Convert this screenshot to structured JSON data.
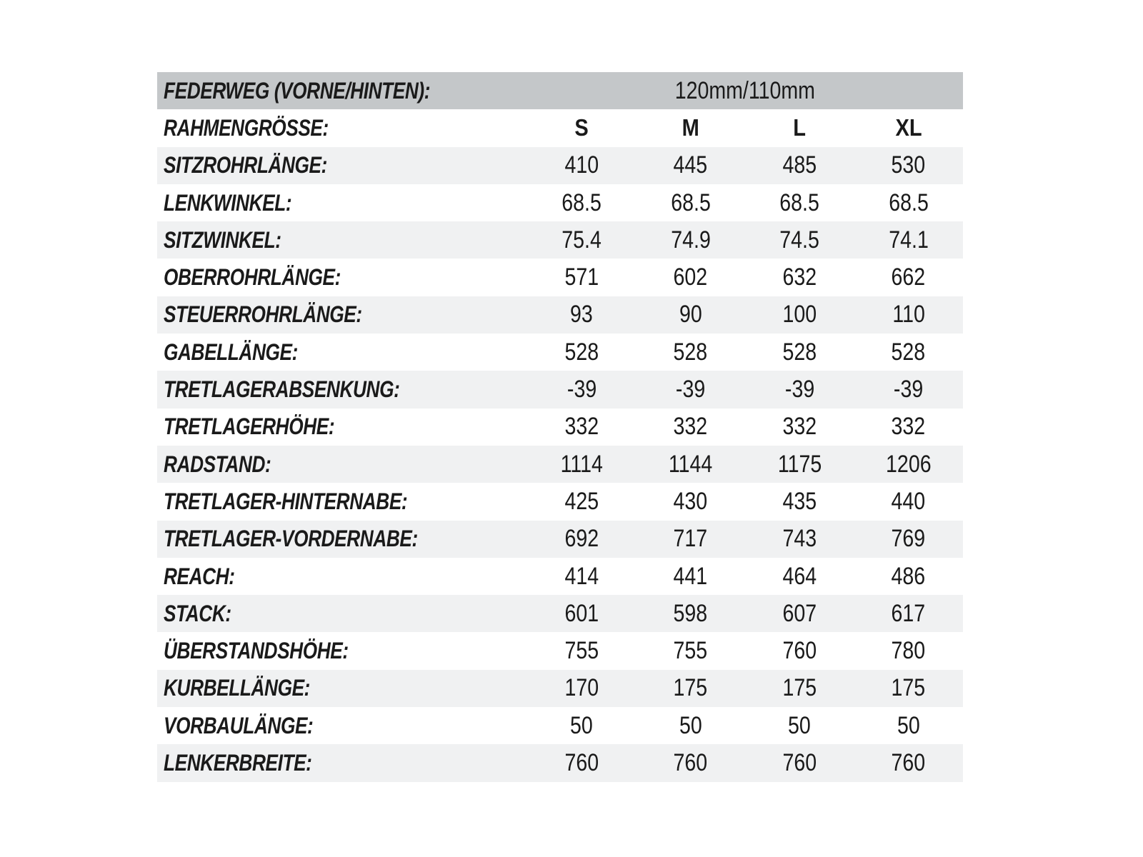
{
  "colors": {
    "header_bg": "#c4c7c9",
    "stripe_bg": "#f0f1f2",
    "plain_bg": "#ffffff",
    "text": "#1a1a1a"
  },
  "table": {
    "header": {
      "label": "FEDERWEG (VORNE/HINTEN):",
      "value": "120mm/110mm"
    },
    "size_row": {
      "label": "RAHMENGRÖSSE:",
      "sizes": [
        "S",
        "M",
        "L",
        "XL"
      ]
    },
    "rows": [
      {
        "label": "SITZROHRLÄNGE:",
        "values": [
          "410",
          "445",
          "485",
          "530"
        ]
      },
      {
        "label": "LENKWINKEL:",
        "values": [
          "68.5",
          "68.5",
          "68.5",
          "68.5"
        ]
      },
      {
        "label": "SITZWINKEL:",
        "values": [
          "75.4",
          "74.9",
          "74.5",
          "74.1"
        ]
      },
      {
        "label": "OBERROHRLÄNGE:",
        "values": [
          "571",
          "602",
          "632",
          "662"
        ]
      },
      {
        "label": "STEUERROHRLÄNGE:",
        "values": [
          "93",
          "90",
          "100",
          "110"
        ]
      },
      {
        "label": "GABELLÄNGE:",
        "values": [
          "528",
          "528",
          "528",
          "528"
        ]
      },
      {
        "label": "TRETLAGERABSENKUNG:",
        "values": [
          "-39",
          "-39",
          "-39",
          "-39"
        ]
      },
      {
        "label": "TRETLAGERHÖHE:",
        "values": [
          "332",
          "332",
          "332",
          "332"
        ]
      },
      {
        "label": "RADSTAND:",
        "values": [
          "1114",
          "1144",
          "1175",
          "1206"
        ]
      },
      {
        "label": "TRETLAGER-HINTERNABE:",
        "values": [
          "425",
          "430",
          "435",
          "440"
        ]
      },
      {
        "label": "TRETLAGER-VORDERNABE:",
        "values": [
          "692",
          "717",
          "743",
          "769"
        ]
      },
      {
        "label": "REACH:",
        "values": [
          "414",
          "441",
          "464",
          "486"
        ]
      },
      {
        "label": "STACK:",
        "values": [
          "601",
          "598",
          "607",
          "617"
        ]
      },
      {
        "label": "ÜBERSTANDSHÖHE:",
        "values": [
          "755",
          "755",
          "760",
          "780"
        ]
      },
      {
        "label": "KURBELLÄNGE:",
        "values": [
          "170",
          "175",
          "175",
          "175"
        ]
      },
      {
        "label": "VORBAULÄNGE:",
        "values": [
          "50",
          "50",
          "50",
          "50"
        ]
      },
      {
        "label": "LENKERBREITE:",
        "values": [
          "760",
          "760",
          "760",
          "760"
        ]
      }
    ]
  }
}
